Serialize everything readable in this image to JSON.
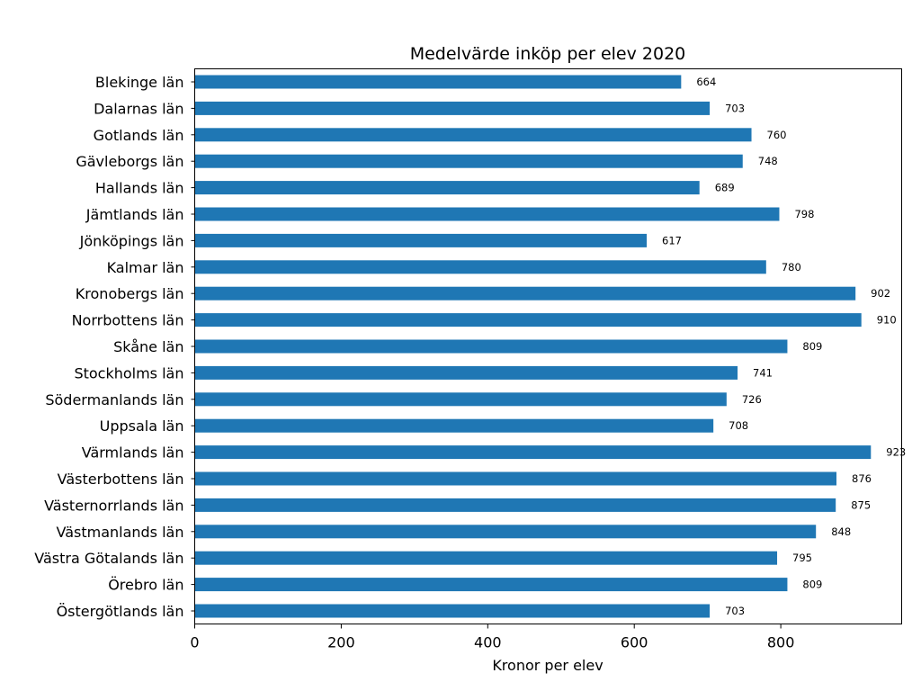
{
  "chart_data": {
    "type": "bar",
    "orientation": "horizontal",
    "title": "Medelvärde inköp per elev 2020",
    "xlabel": "Kronor per elev",
    "ylabel": "",
    "categories": [
      "Blekinge län",
      "Dalarnas län",
      "Gotlands län",
      "Gävleborgs län",
      "Hallands län",
      "Jämtlands län",
      "Jönköpings län",
      "Kalmar län",
      "Kronobergs län",
      "Norrbottens län",
      "Skåne län",
      "Stockholms län",
      "Södermanlands län",
      "Uppsala län",
      "Värmlands län",
      "Västerbottens län",
      "Västernorrlands län",
      "Västmanlands län",
      "Västra Götalands län",
      "Örebro län",
      "Östergötlands län"
    ],
    "values": [
      664,
      703,
      760,
      748,
      689,
      798,
      617,
      780,
      902,
      910,
      809,
      741,
      726,
      708,
      923,
      876,
      875,
      848,
      795,
      809,
      703
    ],
    "xlim": [
      0,
      965
    ],
    "xticks": [
      0,
      200,
      400,
      600,
      800
    ],
    "bar_color": "#1f77b4",
    "grid": false,
    "legend": "none",
    "data_labels": true
  }
}
